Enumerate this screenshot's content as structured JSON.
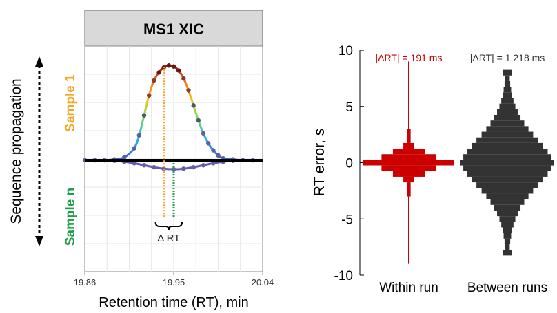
{
  "chart_data": [
    {
      "type": "line",
      "title": "MS1 XIC",
      "xlabel": "Retention time (RT), min",
      "xlim": [
        19.86,
        20.04
      ],
      "xticks": [
        "19.86",
        "19.95",
        "20.04"
      ],
      "grid": true,
      "side_label": "Sequence propagation",
      "delta_label": "Δ RT",
      "series": [
        {
          "name": "Sample 1",
          "color": "#f5a623",
          "apex_rt": 19.94,
          "x": [
            19.86,
            19.87,
            19.88,
            19.89,
            19.9,
            19.91,
            19.915,
            19.92,
            19.925,
            19.93,
            19.935,
            19.94,
            19.945,
            19.95,
            19.955,
            19.96,
            19.965,
            19.97,
            19.975,
            19.98,
            19.985,
            19.99,
            19.995,
            20.0,
            20.01,
            20.02,
            20.03
          ],
          "y": [
            0.0,
            0.0,
            0.0,
            0.01,
            0.03,
            0.12,
            0.25,
            0.45,
            0.65,
            0.8,
            0.88,
            0.93,
            0.95,
            0.94,
            0.9,
            0.82,
            0.7,
            0.55,
            0.4,
            0.27,
            0.17,
            0.1,
            0.05,
            0.02,
            0.01,
            0.0,
            0.0
          ]
        },
        {
          "name": "Sample n",
          "color": "#1e9e4a",
          "apex_rt": 19.95,
          "x": [
            19.86,
            19.87,
            19.88,
            19.89,
            19.9,
            19.91,
            19.92,
            19.93,
            19.94,
            19.95,
            19.96,
            19.97,
            19.98,
            19.99,
            20.0,
            20.01,
            20.02,
            20.03
          ],
          "y": [
            0.0,
            0.0,
            0.0,
            -0.005,
            -0.015,
            -0.03,
            -0.05,
            -0.07,
            -0.085,
            -0.09,
            -0.085,
            -0.07,
            -0.05,
            -0.03,
            -0.015,
            -0.005,
            0.0,
            0.0
          ]
        }
      ]
    },
    {
      "type": "violin",
      "ylabel": "RT error, s",
      "ylim": [
        -10,
        10
      ],
      "yticks": [
        "-10",
        "-5",
        "0",
        "5",
        "10"
      ],
      "categories": [
        "Within run",
        "Between runs"
      ],
      "series": [
        {
          "name": "Within run",
          "color": "#cc0000",
          "annotation": "|ΔRT| = 191 ms",
          "y_bins": [
            -8,
            -6,
            -4,
            -2,
            -1.5,
            -1,
            -0.5,
            0,
            0.5,
            1,
            1.5,
            2,
            4,
            6,
            8
          ],
          "density": [
            0.002,
            0.004,
            0.01,
            0.04,
            0.12,
            0.35,
            0.6,
            1.0,
            0.6,
            0.35,
            0.12,
            0.04,
            0.01,
            0.004,
            0.002
          ]
        },
        {
          "name": "Between runs",
          "color": "#333333",
          "annotation": "|ΔRT| = 1,218 ms",
          "y_bins": [
            -8,
            -7.5,
            -7,
            -6.5,
            -6,
            -5.5,
            -5,
            -4.5,
            -4,
            -3.5,
            -3,
            -2.5,
            -2,
            -1.5,
            -1,
            -0.5,
            0,
            0.5,
            1,
            1.5,
            2,
            2.5,
            3,
            3.5,
            4,
            4.5,
            5,
            5.5,
            6,
            6.5,
            7,
            7.5,
            8
          ],
          "density": [
            0.1,
            0.05,
            0.06,
            0.08,
            0.1,
            0.13,
            0.17,
            0.22,
            0.28,
            0.36,
            0.45,
            0.55,
            0.66,
            0.76,
            0.86,
            0.94,
            1.0,
            0.94,
            0.86,
            0.76,
            0.66,
            0.55,
            0.45,
            0.36,
            0.28,
            0.22,
            0.17,
            0.13,
            0.1,
            0.08,
            0.06,
            0.05,
            0.1
          ]
        }
      ]
    }
  ]
}
